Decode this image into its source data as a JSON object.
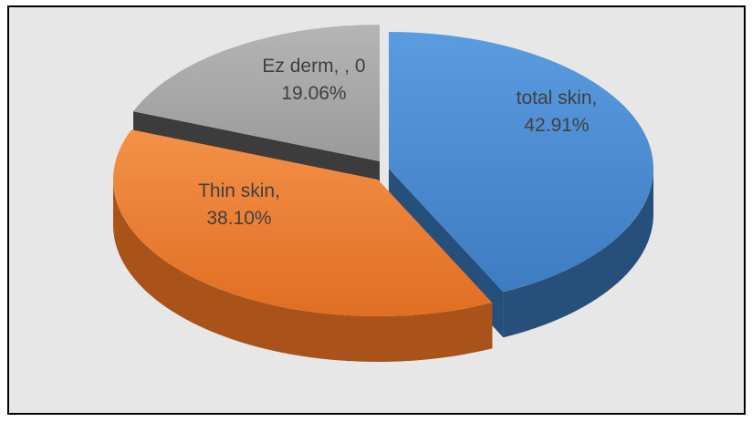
{
  "chart_data": {
    "type": "pie",
    "style": "3d-exploded",
    "slices": [
      {
        "name": "total skin",
        "value": 42.91,
        "label_lines": [
          "total skin,",
          "42.91%"
        ],
        "color": "#4a8ad0",
        "side_color": "#274f7c"
      },
      {
        "name": "Thin skin",
        "value": 38.1,
        "label_lines": [
          "Thin skin,",
          "38.10%"
        ],
        "color": "#ec7c30",
        "side_color": "#a9521a"
      },
      {
        "name": "Ez derm",
        "value": 19.06,
        "label_lines": [
          "Ez derm, , 0",
          "19.06%"
        ],
        "color": "#a6a6a6",
        "side_color": "#3c3c3c"
      }
    ],
    "legend": "none",
    "background": "#e7e7e7",
    "border": "#000000"
  }
}
